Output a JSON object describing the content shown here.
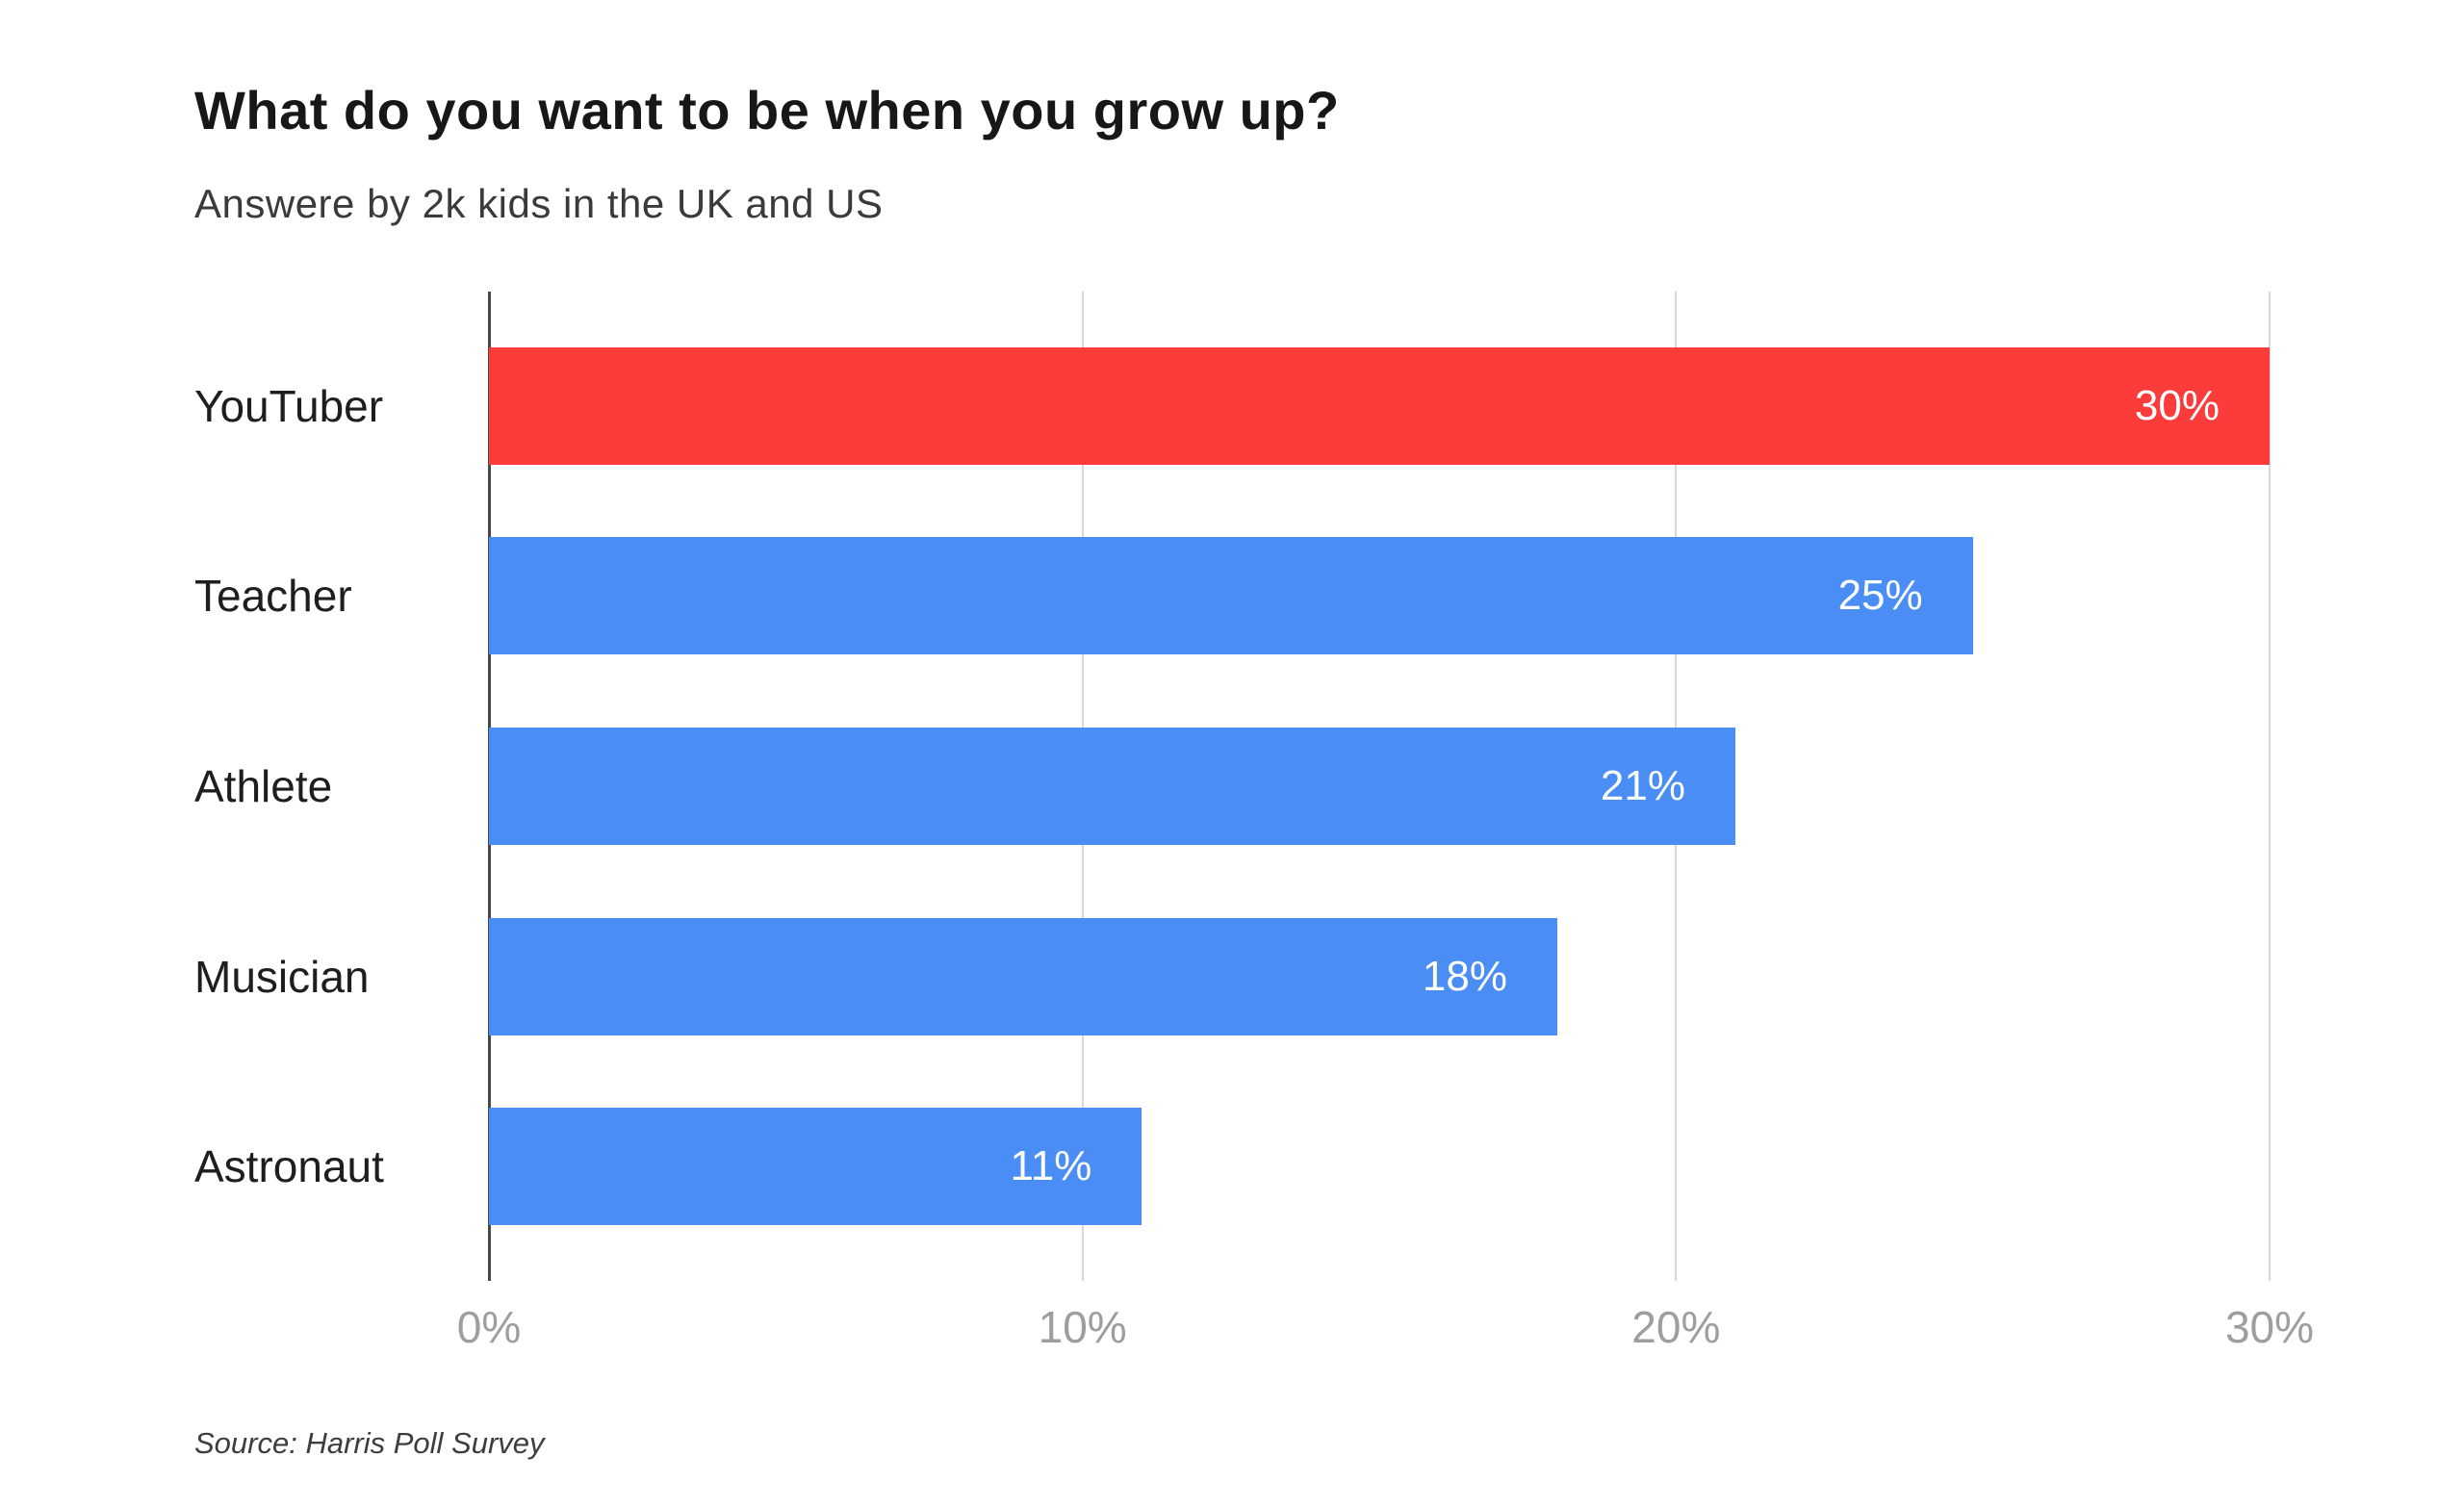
{
  "header": {
    "title": "What do you want to be when you grow up?",
    "subtitle": "Answere by 2k kids in the UK and US"
  },
  "footer": {
    "source": "Source: Harris Poll Survey"
  },
  "colors": {
    "highlight_bar": "#FC3B3B",
    "default_bar": "#4A8EF5",
    "axis_line": "#474747",
    "gridline": "#D8D8D8",
    "tick_text": "#9E9E9E",
    "value_text": "#FFFFFF"
  },
  "chart_data": {
    "type": "bar",
    "orientation": "horizontal",
    "title": "What do you want to be when you grow up?",
    "subtitle": "Answere by 2k kids in the UK and US",
    "source": "Source: Harris Poll Survey",
    "categories": [
      "YouTuber",
      "Teacher",
      "Athlete",
      "Musician",
      "Astronaut"
    ],
    "values": [
      30,
      25,
      21,
      18,
      11
    ],
    "value_labels": [
      "30%",
      "25%",
      "21%",
      "18%",
      "11%"
    ],
    "bar_colors": [
      "#FC3B3B",
      "#4A8EF5",
      "#4A8EF5",
      "#4A8EF5",
      "#4A8EF5"
    ],
    "xlabel": "",
    "ylabel": "",
    "xlim": [
      0,
      30
    ],
    "x_ticks": [
      "0%",
      "10%",
      "20%",
      "30%"
    ],
    "x_tick_values": [
      0,
      10,
      20,
      30
    ],
    "grid": "vertical-gridlines-on",
    "legend": "none"
  }
}
